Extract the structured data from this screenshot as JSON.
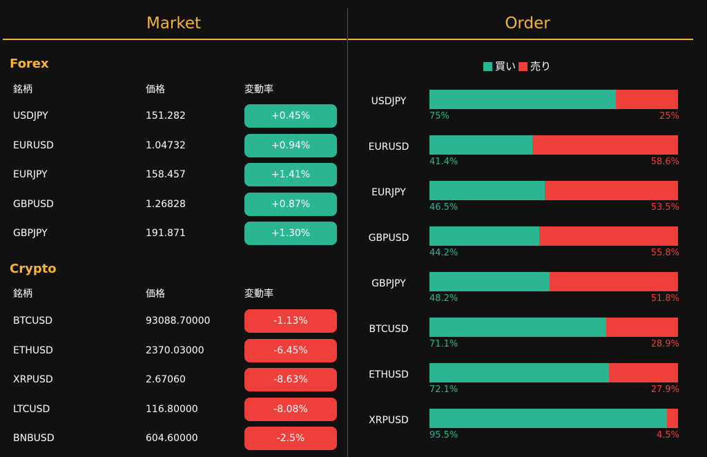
{
  "market": {
    "title": "Market",
    "forex": {
      "title": "Forex",
      "headers": [
        "銘柄",
        "価格",
        "変動率"
      ],
      "rows": [
        {
          "symbol": "USDJPY",
          "price": "151.282",
          "change": "+0.45%",
          "direction": "up"
        },
        {
          "symbol": "EURUSD",
          "price": "1.04732",
          "change": "+0.94%",
          "direction": "up"
        },
        {
          "symbol": "EURJPY",
          "price": "158.457",
          "change": "+1.41%",
          "direction": "up"
        },
        {
          "symbol": "GBPUSD",
          "price": "1.26828",
          "change": "+0.87%",
          "direction": "up"
        },
        {
          "symbol": "GBPJPY",
          "price": "191.871",
          "change": "+1.30%",
          "direction": "up"
        }
      ]
    },
    "crypto": {
      "title": "Crypto",
      "headers": [
        "銘柄",
        "価格",
        "変動率"
      ],
      "rows": [
        {
          "symbol": "BTCUSD",
          "price": "93088.70000",
          "change": "-1.13%",
          "direction": "down"
        },
        {
          "symbol": "ETHUSD",
          "price": "2370.03000",
          "change": "-6.45%",
          "direction": "down"
        },
        {
          "symbol": "XRPUSD",
          "price": "2.67060",
          "change": "-8.63%",
          "direction": "down"
        },
        {
          "symbol": "LTCUSD",
          "price": "116.80000",
          "change": "-8.08%",
          "direction": "down"
        },
        {
          "symbol": "BNBUSD",
          "price": "604.60000",
          "change": "-2.5%",
          "direction": "down"
        }
      ]
    }
  },
  "order": {
    "title": "Order",
    "legend": {
      "buy": "買い",
      "sell": "売り"
    },
    "rows": [
      {
        "symbol": "USDJPY",
        "buy_pct": 75,
        "sell_pct": 25,
        "buy_label": "75%",
        "sell_label": "25%"
      },
      {
        "symbol": "EURUSD",
        "buy_pct": 41.4,
        "sell_pct": 58.6,
        "buy_label": "41.4%",
        "sell_label": "58.6%"
      },
      {
        "symbol": "EURJPY",
        "buy_pct": 46.5,
        "sell_pct": 53.5,
        "buy_label": "46.5%",
        "sell_label": "53.5%"
      },
      {
        "symbol": "GBPUSD",
        "buy_pct": 44.2,
        "sell_pct": 55.8,
        "buy_label": "44.2%",
        "sell_label": "55.8%"
      },
      {
        "symbol": "GBPJPY",
        "buy_pct": 48.2,
        "sell_pct": 51.8,
        "buy_label": "48.2%",
        "sell_label": "51.8%"
      },
      {
        "symbol": "BTCUSD",
        "buy_pct": 71.1,
        "sell_pct": 28.9,
        "buy_label": "71.1%",
        "sell_label": "28.9%"
      },
      {
        "symbol": "ETHUSD",
        "buy_pct": 72.1,
        "sell_pct": 27.9,
        "buy_label": "72.1%",
        "sell_label": "27.9%"
      },
      {
        "symbol": "XRPUSD",
        "buy_pct": 95.5,
        "sell_pct": 4.5,
        "buy_label": "95.5%",
        "sell_label": "4.5%"
      }
    ]
  },
  "colors": {
    "accent": "#f5b33a",
    "buy": "#2bb592",
    "sell": "#ef3f3a",
    "background": "#111111"
  }
}
